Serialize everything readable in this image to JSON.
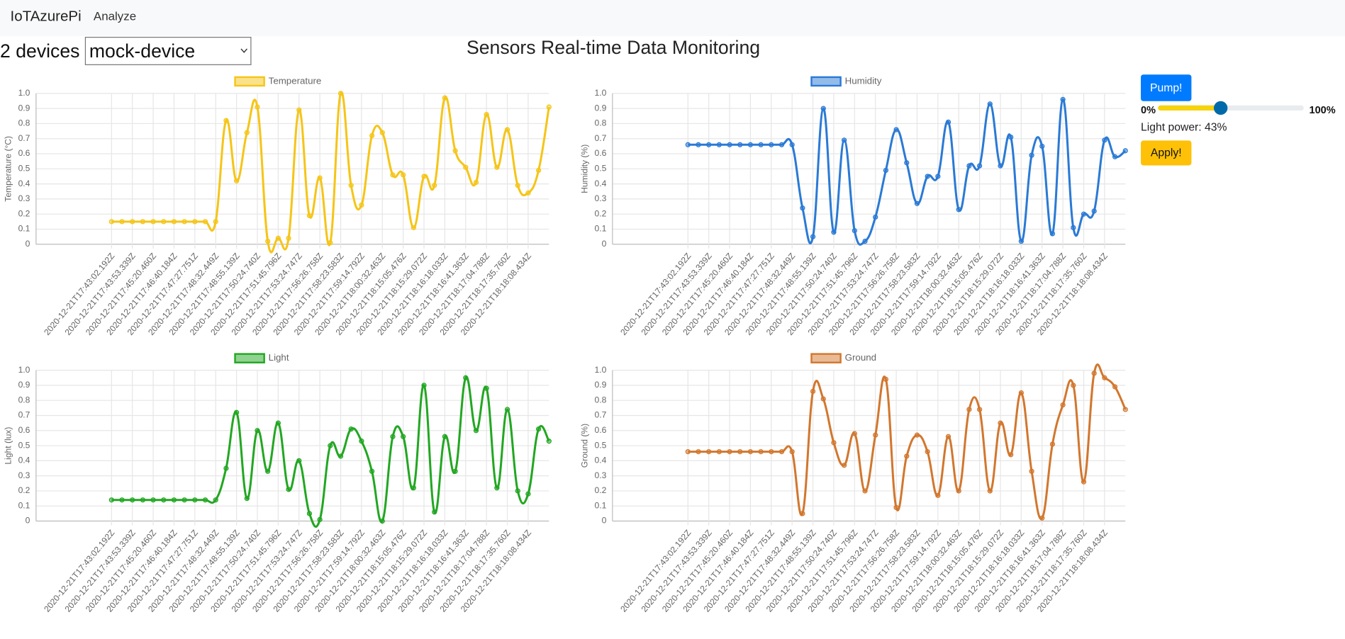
{
  "nav": {
    "brand": "IoTAzurePi",
    "links": [
      "Analyze"
    ]
  },
  "device_count_label": "2 devices",
  "device_select": "mock-device",
  "title": "Sensors Real-time Data Monitoring",
  "controls": {
    "pump_button": "Pump!",
    "slider_ticks": [
      {
        "value": 0,
        "label": "0%"
      },
      {
        "value": 100,
        "label": "100%"
      }
    ],
    "light_power": 43,
    "light_power_label": "Light power: 43%",
    "apply_button": "Apply!"
  },
  "chart_data": [
    {
      "type": "line",
      "y_label": "Temperature (°C)",
      "categories": [
        "2020-12-21T17:43:02.192Z",
        null,
        "2020-12-21T17:43:53.339Z",
        null,
        "2020-12-21T17:45:20.460Z",
        null,
        "2020-12-21T17:46:40.184Z",
        null,
        "2020-12-21T17:47:27.751Z",
        null,
        "2020-12-21T17:48:32.449Z",
        null,
        "2020-12-21T17:48:55.139Z",
        null,
        "2020-12-21T17:50:24.740Z",
        null,
        "2020-12-21T17:51:45.796Z",
        null,
        "2020-12-21T17:53:24.747Z",
        null,
        "2020-12-21T17:56:26.758Z",
        null,
        "2020-12-21T17:58:23.583Z",
        null,
        "2020-12-21T17:59:14.792Z",
        null,
        "2020-12-21T18:00:32.463Z",
        null,
        "2020-12-21T18:15:05.476Z",
        null,
        "2020-12-21T18:15:29.072Z",
        null,
        "2020-12-21T18:16:18.033Z",
        null,
        "2020-12-21T18:16:41.363Z",
        null,
        "2020-12-21T18:17:04.788Z",
        null,
        "2020-12-21T18:17:35.760Z",
        null,
        "2020-12-21T18:18:08.434Z",
        null,
        null
      ],
      "series": [
        {
          "name": "Temperature",
          "color": "#f5c518",
          "values": [
            0.15,
            0.15,
            0.15,
            0.15,
            0.15,
            0.15,
            0.15,
            0.15,
            0.15,
            0.15,
            0.15,
            0.82,
            0.42,
            0.74,
            0.91,
            0.02,
            0.04,
            0.04,
            0.89,
            0.19,
            0.44,
            0.01,
            1.0,
            0.39,
            0.26,
            0.72,
            0.74,
            0.46,
            0.46,
            0.11,
            0.45,
            0.39,
            0.97,
            0.62,
            0.51,
            0.41,
            0.86,
            0.51,
            0.76,
            0.39,
            0.34,
            0.49,
            0.91
          ]
        }
      ],
      "ylim": [
        0,
        1
      ],
      "yticks": [
        0,
        0.1,
        0.2,
        0.3,
        0.4,
        0.5,
        0.6,
        0.7,
        0.8,
        0.9,
        {
          "value": 1,
          "label": "1.0"
        }
      ],
      "grid": true
    },
    {
      "type": "line",
      "y_label": "Humidity (%)",
      "categories": [
        "2020-12-21T17:43:02.192Z",
        null,
        "2020-12-21T17:43:53.339Z",
        null,
        "2020-12-21T17:45:20.460Z",
        null,
        "2020-12-21T17:46:40.184Z",
        null,
        "2020-12-21T17:47:27.751Z",
        null,
        "2020-12-21T17:48:32.449Z",
        null,
        "2020-12-21T17:48:55.139Z",
        null,
        "2020-12-21T17:50:24.740Z",
        null,
        "2020-12-21T17:51:45.796Z",
        null,
        "2020-12-21T17:53:24.747Z",
        null,
        "2020-12-21T17:56:26.758Z",
        null,
        "2020-12-21T17:58:23.583Z",
        null,
        "2020-12-21T17:59:14.792Z",
        null,
        "2020-12-21T18:00:32.463Z",
        null,
        "2020-12-21T18:15:05.476Z",
        null,
        "2020-12-21T18:15:29.072Z",
        null,
        "2020-12-21T18:16:18.033Z",
        null,
        "2020-12-21T18:16:41.363Z",
        null,
        "2020-12-21T18:17:04.788Z",
        null,
        "2020-12-21T18:17:35.760Z",
        null,
        "2020-12-21T18:18:08.434Z",
        null,
        null
      ],
      "series": [
        {
          "name": "Humidity",
          "color": "#2a7ad5",
          "values": [
            0.66,
            0.66,
            0.66,
            0.66,
            0.66,
            0.66,
            0.66,
            0.66,
            0.66,
            0.66,
            0.66,
            0.24,
            0.05,
            0.9,
            0.08,
            0.69,
            0.09,
            0.02,
            0.18,
            0.49,
            0.76,
            0.54,
            0.27,
            0.45,
            0.45,
            0.81,
            0.23,
            0.52,
            0.52,
            0.93,
            0.52,
            0.71,
            0.02,
            0.59,
            0.65,
            0.07,
            0.96,
            0.11,
            0.2,
            0.22,
            0.69,
            0.58,
            0.62
          ]
        }
      ],
      "ylim": [
        0,
        1
      ],
      "yticks": [
        0,
        0.1,
        0.2,
        0.3,
        0.4,
        0.5,
        0.6,
        0.7,
        0.8,
        0.9,
        {
          "value": 1,
          "label": "1.0"
        }
      ],
      "grid": true
    },
    {
      "type": "line",
      "y_label": "Light (lux)",
      "categories": [
        "2020-12-21T17:43:02.192Z",
        null,
        "2020-12-21T17:43:53.339Z",
        null,
        "2020-12-21T17:45:20.460Z",
        null,
        "2020-12-21T17:46:40.184Z",
        null,
        "2020-12-21T17:47:27.751Z",
        null,
        "2020-12-21T17:48:32.449Z",
        null,
        "2020-12-21T17:48:55.139Z",
        null,
        "2020-12-21T17:50:24.740Z",
        null,
        "2020-12-21T17:51:45.796Z",
        null,
        "2020-12-21T17:53:24.747Z",
        null,
        "2020-12-21T17:56:26.758Z",
        null,
        "2020-12-21T17:58:23.583Z",
        null,
        "2020-12-21T17:59:14.792Z",
        null,
        "2020-12-21T18:00:32.463Z",
        null,
        "2020-12-21T18:15:05.476Z",
        null,
        "2020-12-21T18:15:29.072Z",
        null,
        "2020-12-21T18:16:18.033Z",
        null,
        "2020-12-21T18:16:41.363Z",
        null,
        "2020-12-21T18:17:04.788Z",
        null,
        "2020-12-21T18:17:35.760Z",
        null,
        "2020-12-21T18:18:08.434Z",
        null,
        null
      ],
      "series": [
        {
          "name": "Light",
          "color": "#22a722",
          "values": [
            0.14,
            0.14,
            0.14,
            0.14,
            0.14,
            0.14,
            0.14,
            0.14,
            0.14,
            0.14,
            0.14,
            0.35,
            0.72,
            0.15,
            0.6,
            0.33,
            0.65,
            0.21,
            0.4,
            0.05,
            0.01,
            0.5,
            0.43,
            0.61,
            0.53,
            0.33,
            0.0,
            0.56,
            0.56,
            0.22,
            0.9,
            0.06,
            0.56,
            0.33,
            0.95,
            0.6,
            0.88,
            0.22,
            0.74,
            0.2,
            0.18,
            0.61,
            0.53
          ]
        }
      ],
      "ylim": [
        0,
        1
      ],
      "yticks": [
        0,
        0.1,
        0.2,
        0.3,
        0.4,
        0.5,
        0.6,
        0.7,
        0.8,
        0.9,
        {
          "value": 1,
          "label": "1.0"
        }
      ],
      "grid": true
    },
    {
      "type": "line",
      "y_label": "Ground (%)",
      "categories": [
        "2020-12-21T17:43:02.192Z",
        null,
        "2020-12-21T17:43:53.339Z",
        null,
        "2020-12-21T17:45:20.460Z",
        null,
        "2020-12-21T17:46:40.184Z",
        null,
        "2020-12-21T17:47:27.751Z",
        null,
        "2020-12-21T17:48:32.449Z",
        null,
        "2020-12-21T17:48:55.139Z",
        null,
        "2020-12-21T17:50:24.740Z",
        null,
        "2020-12-21T17:51:45.796Z",
        null,
        "2020-12-21T17:53:24.747Z",
        null,
        "2020-12-21T17:56:26.758Z",
        null,
        "2020-12-21T17:58:23.583Z",
        null,
        "2020-12-21T17:59:14.792Z",
        null,
        "2020-12-21T18:00:32.463Z",
        null,
        "2020-12-21T18:15:05.476Z",
        null,
        "2020-12-21T18:15:29.072Z",
        null,
        "2020-12-21T18:16:18.033Z",
        null,
        "2020-12-21T18:16:41.363Z",
        null,
        "2020-12-21T18:17:04.788Z",
        null,
        "2020-12-21T18:17:35.760Z",
        null,
        "2020-12-21T18:18:08.434Z",
        null,
        null
      ],
      "series": [
        {
          "name": "Ground",
          "color": "#d2772e",
          "values": [
            0.46,
            0.46,
            0.46,
            0.46,
            0.46,
            0.46,
            0.46,
            0.46,
            0.46,
            0.46,
            0.46,
            0.05,
            0.86,
            0.81,
            0.52,
            0.37,
            0.58,
            0.2,
            0.57,
            0.94,
            0.09,
            0.43,
            0.57,
            0.46,
            0.17,
            0.56,
            0.2,
            0.74,
            0.74,
            0.2,
            0.65,
            0.44,
            0.85,
            0.33,
            0.02,
            0.51,
            0.77,
            0.9,
            0.26,
            0.98,
            0.95,
            0.89,
            0.74
          ]
        }
      ],
      "ylim": [
        0,
        1
      ],
      "yticks": [
        0,
        0.1,
        0.2,
        0.3,
        0.4,
        0.5,
        0.6,
        0.7,
        0.8,
        0.9,
        {
          "value": 1,
          "label": "1.0"
        }
      ],
      "grid": true
    }
  ]
}
